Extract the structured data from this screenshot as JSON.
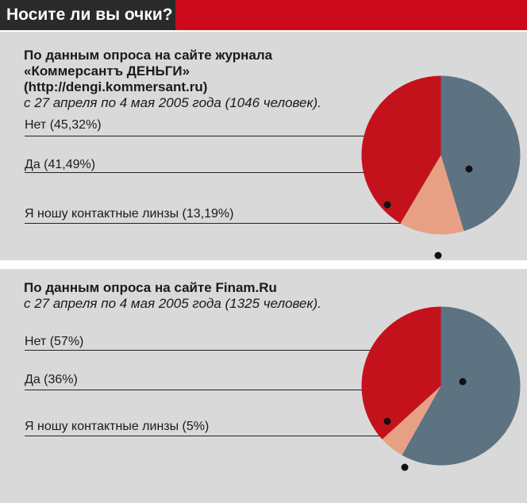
{
  "header": {
    "title": "Носите ли вы очки?"
  },
  "colors": {
    "accent_red": "#cc0a1c",
    "dark_red": "#c4121c",
    "slate": "#5d7382",
    "salmon": "#e8a085",
    "panel_bg": "#d9d9d9"
  },
  "chart_data": [
    {
      "type": "pie",
      "source_bold": [
        "По данным опроса на сайте журнала",
        "«Коммерсантъ ДЕНЬГИ»",
        "(http://dengi.kommersant.ru)"
      ],
      "source_italic": "с 27 апреля по 4 мая 2005 года (1046 человек).",
      "slices": [
        {
          "label": "Нет (45,32%)",
          "value": 45.32,
          "color": "#5d7382"
        },
        {
          "label": "Да (41,49%)",
          "value": 41.49,
          "color": "#c4121c"
        },
        {
          "label": "Я ношу контактные линзы (13,19%)",
          "value": 13.19,
          "color": "#e8a085"
        }
      ]
    },
    {
      "type": "pie",
      "source_bold": [
        "По данным опроса на сайте Finam.Ru"
      ],
      "source_italic": "с 27 апреля по 4 мая 2005 года (1325 человек).",
      "slices": [
        {
          "label": "Нет (57%)",
          "value": 57,
          "color": "#5d7382"
        },
        {
          "label": "Да (36%)",
          "value": 36,
          "color": "#c4121c"
        },
        {
          "label": "Я ношу контактные линзы (5%)",
          "value": 5,
          "color": "#e8a085"
        }
      ]
    }
  ]
}
